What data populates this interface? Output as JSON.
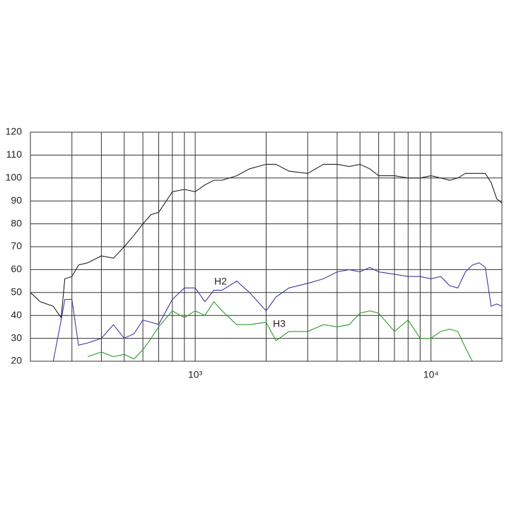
{
  "chart_data": {
    "type": "line",
    "xscale": "log",
    "xlim": [
      200,
      20000
    ],
    "ylim": [
      20,
      120
    ],
    "xticks": [
      {
        "value": 1000,
        "label": "10³"
      },
      {
        "value": 10000,
        "label": "10⁴"
      }
    ],
    "xminor": [
      300,
      400,
      500,
      600,
      700,
      800,
      900,
      2000,
      3000,
      4000,
      5000,
      6000,
      7000,
      8000,
      9000
    ],
    "yticks": [
      20,
      30,
      40,
      50,
      60,
      70,
      80,
      90,
      100,
      110,
      120
    ],
    "grid": true,
    "x": [
      200,
      220,
      250,
      270,
      280,
      300,
      320,
      350,
      400,
      450,
      500,
      550,
      600,
      650,
      700,
      800,
      900,
      1000,
      1100,
      1200,
      1300,
      1500,
      1700,
      2000,
      2200,
      2500,
      3000,
      3500,
      4000,
      4500,
      5000,
      5500,
      6000,
      7000,
      8000,
      9000,
      10000,
      11000,
      12000,
      13000,
      14000,
      15000,
      16000,
      17000,
      18000,
      19000,
      20000
    ],
    "series": [
      {
        "color": "#222222",
        "values": [
          50,
          46,
          44,
          39,
          56,
          57,
          62,
          63,
          66,
          65,
          70,
          75,
          80,
          84,
          85,
          94,
          95,
          94,
          97,
          99,
          99,
          101,
          104,
          106,
          106,
          103,
          102,
          106,
          106,
          105,
          106,
          104,
          101,
          101,
          100,
          100,
          101,
          100,
          99,
          100,
          102,
          102,
          102,
          102,
          98,
          91,
          89
        ]
      },
      {
        "name": "H2",
        "color": "#3c3ca0",
        "values": [
          null,
          null,
          20,
          38,
          47,
          47,
          27,
          28,
          30,
          36,
          30,
          32,
          38,
          37,
          36,
          47,
          52,
          52,
          46,
          51,
          51,
          55,
          50,
          42,
          48,
          52,
          54,
          56,
          59,
          60,
          59,
          61,
          59,
          58,
          57,
          57,
          56,
          57,
          53,
          52,
          59,
          62,
          63,
          61,
          44,
          45,
          44
        ]
      },
      {
        "name": "H3",
        "color": "#2e9a2e",
        "values": [
          null,
          null,
          null,
          null,
          null,
          null,
          null,
          22,
          24,
          22,
          23,
          21,
          25,
          30,
          35,
          42,
          39,
          42,
          40,
          46,
          42,
          36,
          36,
          37,
          29,
          33,
          33,
          36,
          35,
          36,
          41,
          42,
          41,
          33,
          38,
          30,
          30,
          33,
          34,
          33,
          26,
          20,
          null,
          null,
          null,
          null,
          null
        ]
      }
    ]
  }
}
